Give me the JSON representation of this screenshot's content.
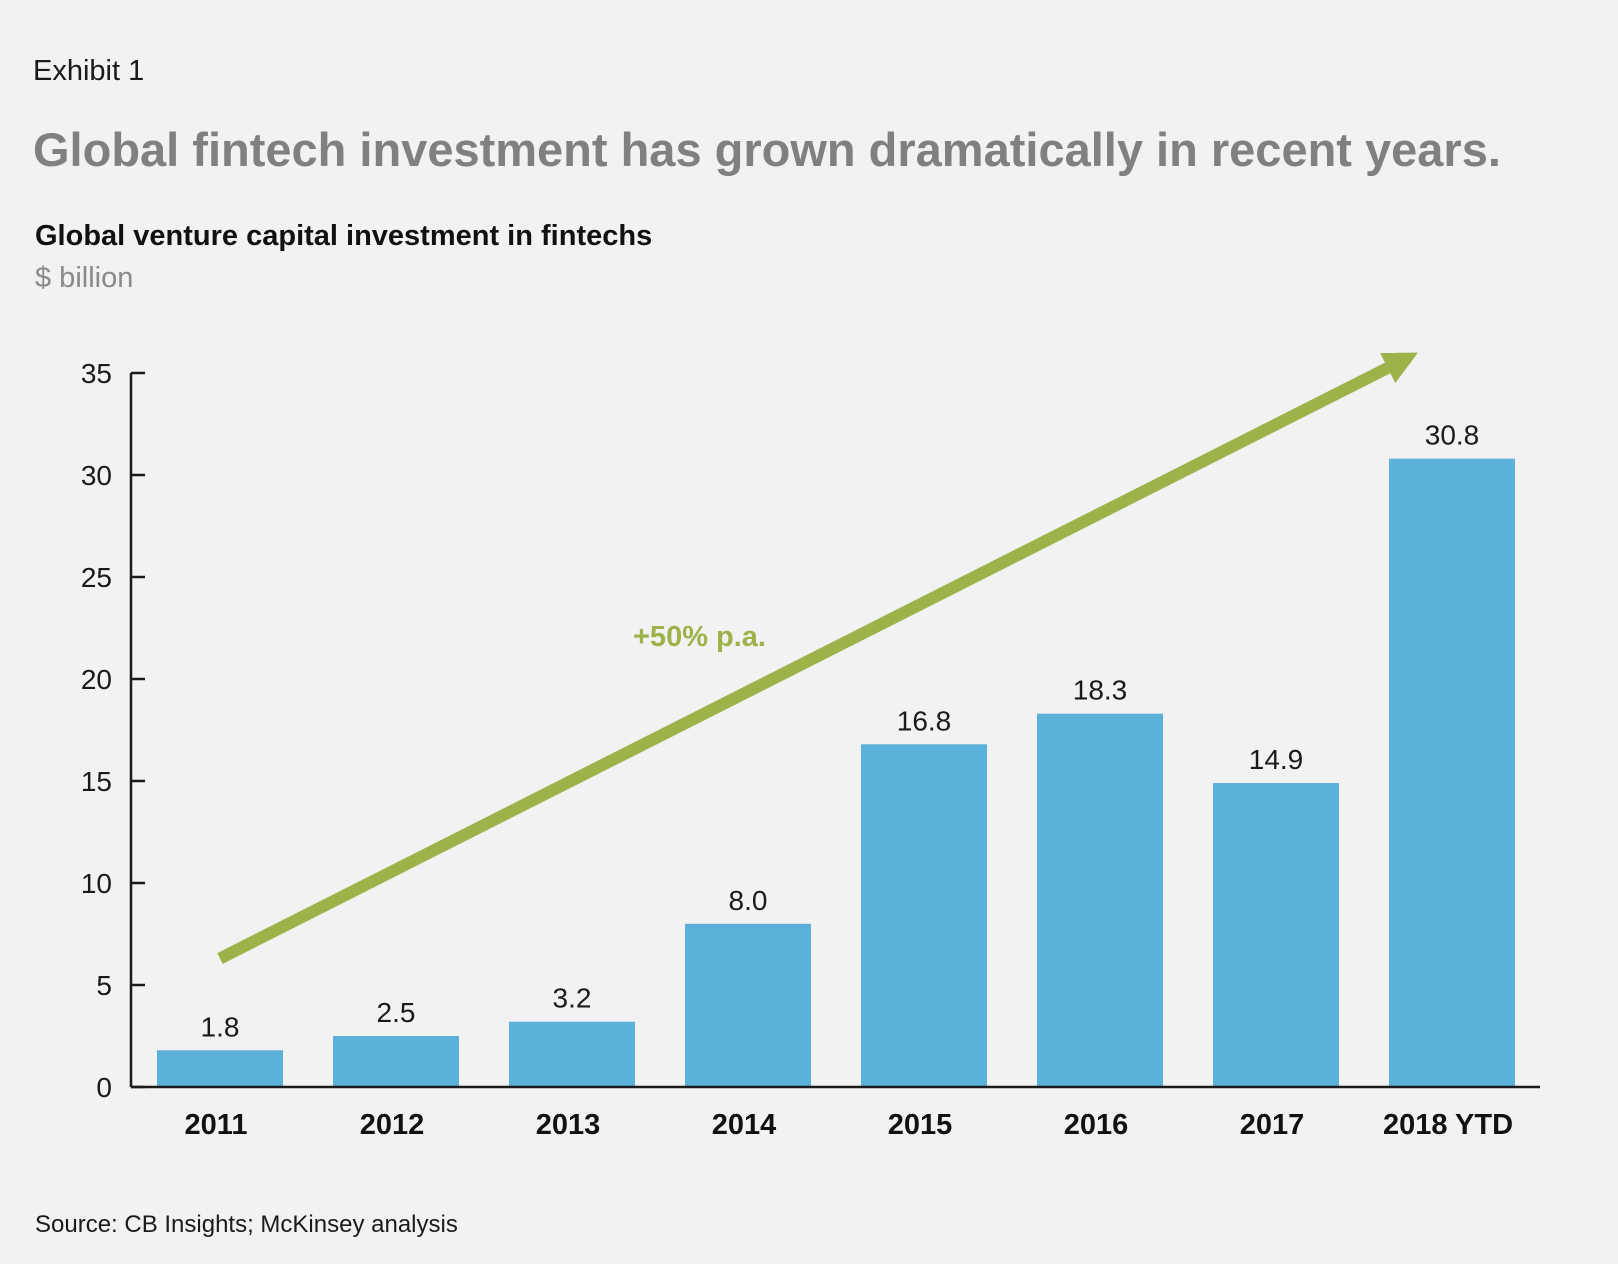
{
  "exhibit": "Exhibit 1",
  "headline": "Global fintech investment has grown dramatically in recent years.",
  "source": "Source: CB Insights; McKinsey analysis",
  "colors": {
    "bar": "#5bb1d9",
    "arrow": "#9db34a",
    "axis": "#1a1a1a"
  },
  "chart_data": {
    "type": "bar",
    "title": "Global venture capital investment in fintechs",
    "subtitle": "$ billion",
    "categories": [
      "2011",
      "2012",
      "2013",
      "2014",
      "2015",
      "2016",
      "2017",
      "2018 YTD"
    ],
    "values": [
      1.8,
      2.5,
      3.2,
      8.0,
      16.8,
      18.3,
      14.9,
      30.8
    ],
    "value_labels": [
      "1.8",
      "2.5",
      "3.2",
      "8.0",
      "16.8",
      "18.3",
      "14.9",
      "30.8"
    ],
    "ylim": [
      0,
      35
    ],
    "yticks": [
      0,
      5,
      10,
      15,
      20,
      25,
      30,
      35
    ],
    "grid": false,
    "legend": "none",
    "annotation": {
      "text": "+50% p.a.",
      "type": "trend-arrow",
      "from": {
        "category": "2011",
        "value": 6.3
      },
      "to": {
        "category": "2018 YTD",
        "value": 36.0
      }
    }
  }
}
